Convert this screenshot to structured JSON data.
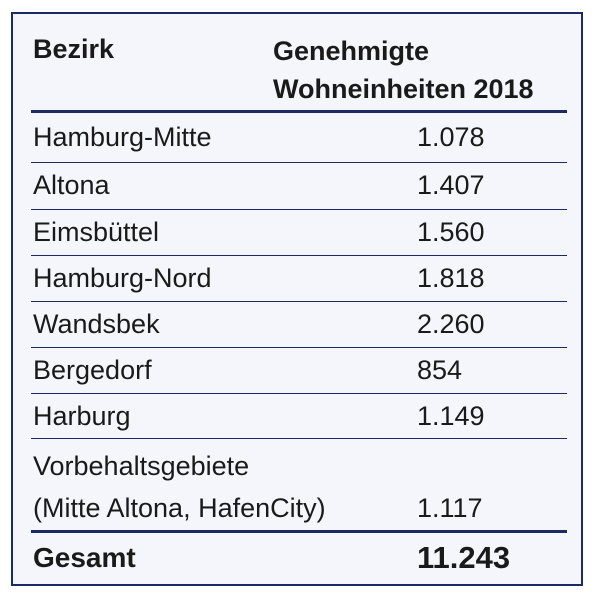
{
  "table": {
    "header": {
      "col_district": "Bezirk",
      "col_units_line1": "Genehmigte",
      "col_units_line2": "Wohneinheiten 2018"
    },
    "rows": [
      {
        "district": "Hamburg-Mitte",
        "units": "1.078"
      },
      {
        "district": "Altona",
        "units": "1.407"
      },
      {
        "district": "Eimsbüttel",
        "units": "1.560"
      },
      {
        "district": "Hamburg-Nord",
        "units": "1.818"
      },
      {
        "district": "Wandsbek",
        "units": "2.260"
      },
      {
        "district": "Bergedorf",
        "units": "854"
      },
      {
        "district": "Harburg",
        "units": "1.149"
      }
    ],
    "reserved": {
      "district_line1": "Vorbehaltsgebiete",
      "district_line2": "(Mitte Altona, HafenCity)",
      "units": "1.117"
    },
    "total": {
      "label": "Gesamt",
      "units": "11.243"
    }
  },
  "colors": {
    "rule": "#1b2a63",
    "background": "#f5f6fb",
    "text": "#1a1a1a"
  }
}
